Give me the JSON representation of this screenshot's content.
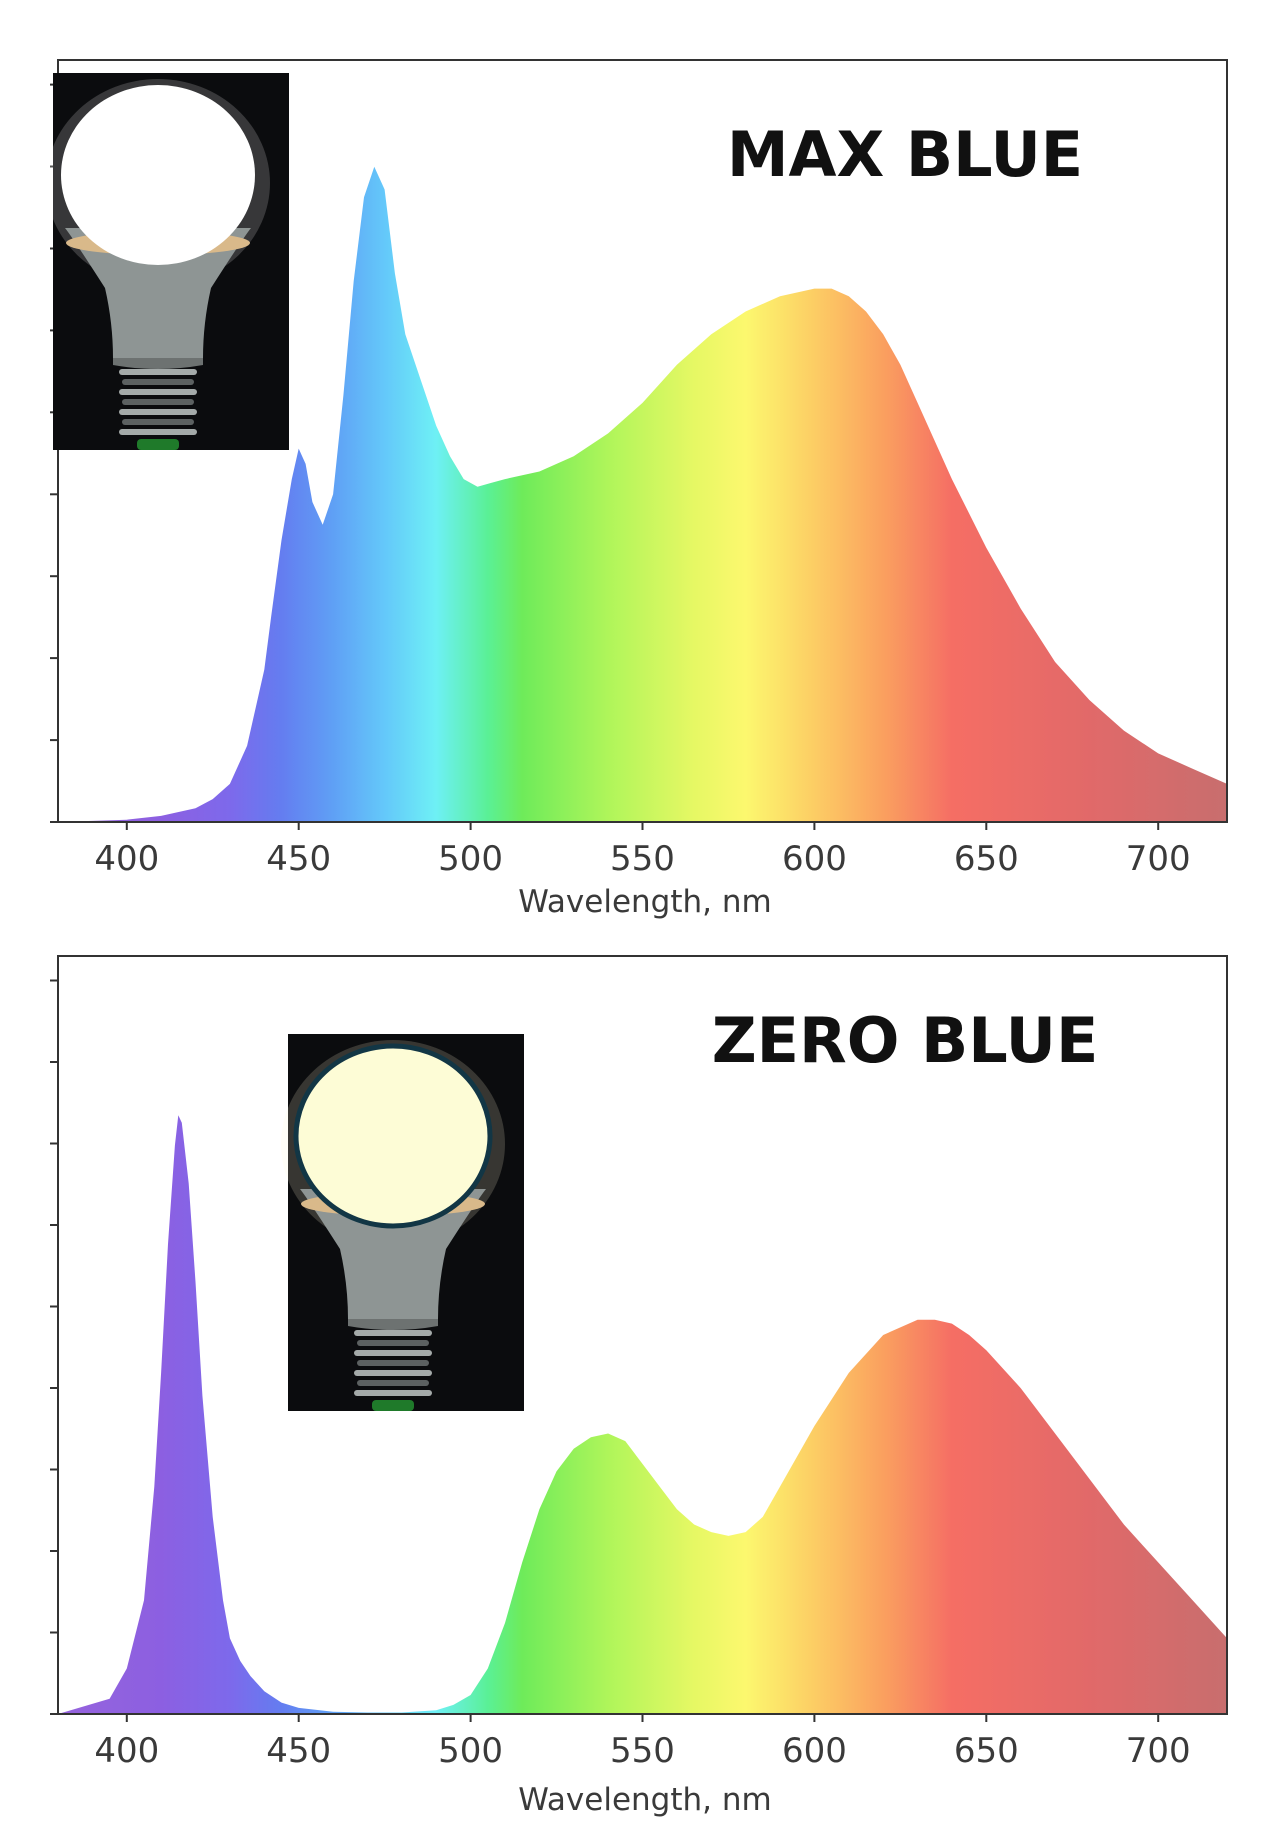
{
  "chart_data": [
    {
      "type": "area",
      "title": "MAX BLUE",
      "xlabel": "Wavelength, nm",
      "ylabel": "",
      "xlim": [
        380,
        720
      ],
      "ylim": [
        0,
        1
      ],
      "x_ticks": [
        400,
        450,
        500,
        550,
        600,
        650,
        700
      ],
      "y_ticks_labeled": false,
      "fill": "visible-spectrum gradient by wavelength",
      "inset_icon": "light-bulb-icon",
      "series": [
        {
          "x": [
            380,
            400,
            410,
            420,
            425,
            430,
            435,
            440,
            442,
            445,
            448,
            450,
            452,
            454,
            457,
            460,
            463,
            466,
            469,
            472,
            475,
            478,
            481,
            484,
            487,
            490,
            494,
            498,
            502,
            506,
            510,
            520,
            530,
            540,
            550,
            560,
            570,
            580,
            590,
            600,
            605,
            610,
            615,
            620,
            625,
            630,
            640,
            650,
            660,
            670,
            680,
            690,
            700,
            710,
            720
          ],
          "values": [
            0.0,
            0.003,
            0.008,
            0.018,
            0.03,
            0.05,
            0.1,
            0.2,
            0.27,
            0.37,
            0.45,
            0.49,
            0.47,
            0.42,
            0.39,
            0.43,
            0.56,
            0.71,
            0.82,
            0.86,
            0.83,
            0.72,
            0.64,
            0.6,
            0.56,
            0.52,
            0.48,
            0.45,
            0.44,
            0.445,
            0.45,
            0.46,
            0.48,
            0.51,
            0.55,
            0.6,
            0.64,
            0.67,
            0.69,
            0.7,
            0.7,
            0.69,
            0.67,
            0.64,
            0.6,
            0.55,
            0.45,
            0.36,
            0.28,
            0.21,
            0.16,
            0.12,
            0.09,
            0.07,
            0.05
          ]
        }
      ]
    },
    {
      "type": "area",
      "title": "ZERO BLUE",
      "xlabel": "Wavelength, nm",
      "ylabel": "",
      "xlim": [
        380,
        720
      ],
      "ylim": [
        0,
        1
      ],
      "x_ticks": [
        400,
        450,
        500,
        550,
        600,
        650,
        700
      ],
      "y_ticks_labeled": false,
      "fill": "visible-spectrum gradient by wavelength",
      "inset_icon": "light-bulb-icon",
      "series": [
        {
          "x": [
            380,
            395,
            400,
            405,
            408,
            410,
            412,
            414,
            415,
            416,
            418,
            420,
            422,
            425,
            428,
            430,
            433,
            436,
            440,
            445,
            450,
            460,
            470,
            480,
            490,
            495,
            500,
            505,
            510,
            515,
            520,
            525,
            530,
            535,
            540,
            545,
            550,
            555,
            560,
            565,
            570,
            575,
            580,
            585,
            590,
            600,
            610,
            620,
            630,
            635,
            640,
            645,
            650,
            660,
            670,
            680,
            690,
            700,
            710,
            720
          ],
          "values": [
            0.0,
            0.02,
            0.06,
            0.15,
            0.3,
            0.45,
            0.62,
            0.75,
            0.79,
            0.78,
            0.7,
            0.57,
            0.42,
            0.26,
            0.15,
            0.1,
            0.07,
            0.05,
            0.03,
            0.015,
            0.008,
            0.003,
            0.002,
            0.002,
            0.005,
            0.012,
            0.025,
            0.06,
            0.12,
            0.2,
            0.27,
            0.32,
            0.35,
            0.365,
            0.37,
            0.36,
            0.33,
            0.3,
            0.27,
            0.25,
            0.24,
            0.235,
            0.24,
            0.26,
            0.3,
            0.38,
            0.45,
            0.5,
            0.52,
            0.52,
            0.515,
            0.5,
            0.48,
            0.43,
            0.37,
            0.31,
            0.25,
            0.2,
            0.15,
            0.1
          ]
        }
      ]
    }
  ]
}
